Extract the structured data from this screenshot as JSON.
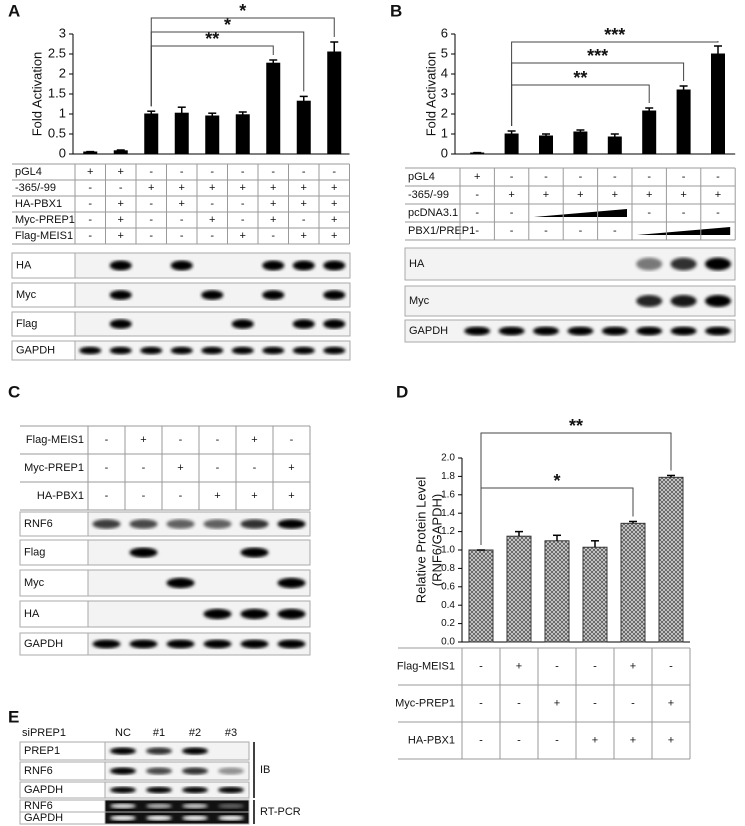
{
  "chart_data": [
    {
      "type": "bar",
      "panel": "A",
      "ylabel": "Fold Activation",
      "color": "#000000",
      "values": [
        0.05,
        0.08,
        1.0,
        1.02,
        0.95,
        0.98,
        2.27,
        1.32,
        2.55
      ],
      "errors": [
        0.01,
        0.02,
        0.07,
        0.15,
        0.07,
        0.07,
        0.08,
        0.12,
        0.25
      ],
      "ylim": [
        0,
        3
      ],
      "yticks": [
        0,
        0.5,
        1,
        1.5,
        2,
        2.5,
        3
      ],
      "annotations": [
        "**",
        "*",
        "*"
      ],
      "conditions": [
        {
          "name": "pGL4",
          "marks": [
            "+",
            "+",
            "-",
            "-",
            "-",
            "-",
            "-",
            "-",
            "-"
          ]
        },
        {
          "name": "-365/-99",
          "marks": [
            "-",
            "-",
            "+",
            "+",
            "+",
            "+",
            "+",
            "+",
            "+"
          ]
        },
        {
          "name": "HA-PBX1",
          "marks": [
            "-",
            "+",
            "-",
            "+",
            "-",
            "-",
            "+",
            "+",
            "+"
          ]
        },
        {
          "name": "Myc-PREP1",
          "marks": [
            "-",
            "+",
            "-",
            "-",
            "+",
            "-",
            "+",
            "-",
            "+"
          ]
        },
        {
          "name": "Flag-MEIS1",
          "marks": [
            "-",
            "+",
            "-",
            "-",
            "-",
            "+",
            "-",
            "+",
            "+"
          ]
        }
      ],
      "blots": [
        "HA",
        "Myc",
        "Flag",
        "GAPDH"
      ]
    },
    {
      "type": "bar",
      "panel": "B",
      "ylabel": "Fold Activation",
      "color": "#000000",
      "values": [
        0.05,
        1.0,
        0.9,
        1.1,
        0.85,
        2.15,
        3.2,
        5.0
      ],
      "errors": [
        0.02,
        0.15,
        0.1,
        0.1,
        0.15,
        0.15,
        0.2,
        0.4
      ],
      "ylim": [
        0,
        6
      ],
      "yticks": [
        0,
        1,
        2,
        3,
        4,
        5,
        6
      ],
      "annotations": [
        "**",
        "***",
        "***"
      ],
      "conditions": [
        {
          "name": "pGL4",
          "marks": [
            "+",
            "-",
            "-",
            "-",
            "-",
            "-",
            "-",
            "-"
          ]
        },
        {
          "name": "-365/-99",
          "marks": [
            "-",
            "+",
            "+",
            "+",
            "+",
            "+",
            "+",
            "+"
          ]
        },
        {
          "name": "pcDNA3.1",
          "marks": [
            "-",
            "-",
            null,
            null,
            null,
            "-",
            "-",
            "-"
          ]
        },
        {
          "name": "PBX1/PREP1",
          "marks": [
            "-",
            "-",
            "-",
            "-",
            "-",
            null,
            null,
            null
          ]
        }
      ],
      "blots": [
        "HA",
        "Myc",
        "GAPDH"
      ]
    },
    {
      "type": "bar",
      "panel": "D",
      "ylabel": [
        "Relative Protein Level",
        "(RNF6/GAPDH)"
      ],
      "color": "#9a9a9a",
      "hatch": true,
      "values": [
        1.0,
        1.15,
        1.1,
        1.03,
        1.29,
        1.79
      ],
      "errors": [
        0.0,
        0.05,
        0.06,
        0.07,
        0.02,
        0.02
      ],
      "ylim": [
        0,
        2
      ],
      "yticks": [
        {
          "value": 0,
          "label": "0.0"
        },
        {
          "value": 0.2,
          "label": "0.2"
        },
        {
          "value": 0.4,
          "label": "0.4"
        },
        {
          "value": 0.6,
          "label": "0.6"
        },
        {
          "value": 0.8,
          "label": "0.8"
        },
        {
          "value": 1,
          "label": "1.0"
        },
        {
          "value": 1.2,
          "label": "1.2"
        },
        {
          "value": 1.4,
          "label": "1.4"
        },
        {
          "value": 1.6,
          "label": "1.6"
        },
        {
          "value": 1.8,
          "label": "1.8"
        },
        {
          "value": 2,
          "label": "2.0"
        }
      ],
      "annotations": [
        "*",
        "**"
      ],
      "conditions": [
        {
          "name": "Flag-MEIS1",
          "marks": [
            "-",
            "+",
            "-",
            "-",
            "+",
            "-"
          ]
        },
        {
          "name": "Myc-PREP1",
          "marks": [
            "-",
            "-",
            "+",
            "-",
            "-",
            "+"
          ]
        },
        {
          "name": "HA-PBX1",
          "marks": [
            "-",
            "-",
            "-",
            "+",
            "+",
            "+"
          ]
        }
      ]
    }
  ],
  "panel_c": {
    "panel": "C",
    "conditions": [
      {
        "name": "Flag-MEIS1",
        "marks": [
          "-",
          "+",
          "-",
          "-",
          "+",
          "-"
        ]
      },
      {
        "name": "Myc-PREP1",
        "marks": [
          "-",
          "-",
          "+",
          "-",
          "-",
          "+"
        ]
      },
      {
        "name": "HA-PBX1",
        "marks": [
          "-",
          "-",
          "-",
          "+",
          "+",
          "+"
        ]
      }
    ],
    "blots": [
      "RNF6",
      "Flag",
      "Myc",
      "HA",
      "GAPDH"
    ]
  },
  "panel_e": {
    "panel": "E",
    "header": "siPREP1",
    "lanes": [
      "NC",
      "#1",
      "#2",
      "#3"
    ],
    "ib": {
      "label": "IB",
      "blots": [
        "PREP1",
        "RNF6",
        "GAPDH"
      ]
    },
    "rtpcr": {
      "label": "RT-PCR",
      "blots": [
        "RNF6",
        "GAPDH"
      ]
    }
  }
}
